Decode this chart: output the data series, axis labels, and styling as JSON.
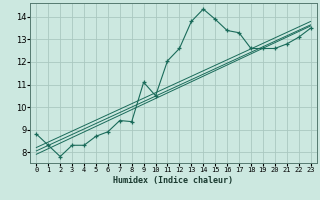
{
  "title": "",
  "xlabel": "Humidex (Indice chaleur)",
  "ylabel": "",
  "background_color": "#cce8e0",
  "grid_color": "#aac8c0",
  "line_color": "#1a6b5a",
  "xlim": [
    -0.5,
    23.5
  ],
  "ylim": [
    7.5,
    14.6
  ],
  "xticks": [
    0,
    1,
    2,
    3,
    4,
    5,
    6,
    7,
    8,
    9,
    10,
    11,
    12,
    13,
    14,
    15,
    16,
    17,
    18,
    19,
    20,
    21,
    22,
    23
  ],
  "yticks": [
    8,
    9,
    10,
    11,
    12,
    13,
    14
  ],
  "series1_x": [
    0,
    1,
    2,
    3,
    4,
    5,
    6,
    7,
    8,
    9,
    10,
    11,
    12,
    13,
    14,
    15,
    16,
    17,
    18,
    19,
    20,
    21,
    22,
    23
  ],
  "series1_y": [
    8.8,
    8.3,
    7.8,
    8.3,
    8.3,
    8.7,
    8.9,
    9.4,
    9.35,
    11.1,
    10.5,
    12.05,
    12.6,
    13.8,
    14.35,
    13.9,
    13.4,
    13.3,
    12.6,
    12.6,
    12.6,
    12.8,
    13.1,
    13.5
  ],
  "series2_x": [
    0,
    23
  ],
  "series2_y": [
    7.9,
    13.6
  ],
  "series3_x": [
    0,
    23
  ],
  "series3_y": [
    8.05,
    13.65
  ],
  "series4_x": [
    0,
    23
  ],
  "series4_y": [
    8.2,
    13.8
  ]
}
